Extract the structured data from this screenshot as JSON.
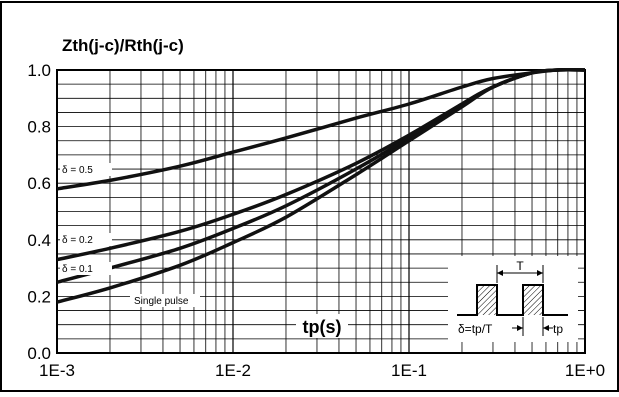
{
  "chart_data": {
    "type": "line",
    "ylabel": "Zth(j-c)/Rth(j-c)",
    "xlabel": "tp(s)",
    "x_scale": "log",
    "xlim": [
      0.001,
      1
    ],
    "ylim": [
      0,
      1
    ],
    "grid": true,
    "x_ticks": [
      {
        "value": 0.001,
        "label": "1E-3"
      },
      {
        "value": 0.01,
        "label": "1E-2"
      },
      {
        "value": 0.1,
        "label": "1E-1"
      },
      {
        "value": 1,
        "label": "1E+0"
      }
    ],
    "y_ticks": [
      {
        "value": 0.0,
        "label": "0.0"
      },
      {
        "value": 0.2,
        "label": "0.2"
      },
      {
        "value": 0.4,
        "label": "0.4"
      },
      {
        "value": 0.6,
        "label": "0.6"
      },
      {
        "value": 0.8,
        "label": "0.8"
      },
      {
        "value": 1.0,
        "label": "1.0"
      }
    ],
    "series": [
      {
        "name": "δ = 0.5",
        "x": [
          0.001,
          0.002,
          0.005,
          0.01,
          0.02,
          0.05,
          0.1,
          0.2,
          0.3,
          0.5,
          0.7,
          1
        ],
        "y": [
          0.58,
          0.61,
          0.66,
          0.71,
          0.76,
          0.83,
          0.88,
          0.94,
          0.97,
          0.99,
          1.0,
          1.0
        ]
      },
      {
        "name": "δ = 0.2",
        "x": [
          0.001,
          0.002,
          0.005,
          0.01,
          0.02,
          0.05,
          0.1,
          0.2,
          0.3,
          0.5,
          0.7,
          1
        ],
        "y": [
          0.33,
          0.37,
          0.43,
          0.49,
          0.56,
          0.67,
          0.77,
          0.88,
          0.94,
          0.99,
          1.0,
          1.0
        ]
      },
      {
        "name": "δ = 0.1",
        "x": [
          0.001,
          0.002,
          0.005,
          0.01,
          0.02,
          0.05,
          0.1,
          0.2,
          0.3,
          0.5,
          0.7,
          1
        ],
        "y": [
          0.25,
          0.3,
          0.37,
          0.44,
          0.52,
          0.65,
          0.76,
          0.88,
          0.94,
          0.99,
          1.0,
          1.0
        ]
      },
      {
        "name": "Single pulse",
        "x": [
          0.001,
          0.002,
          0.005,
          0.01,
          0.02,
          0.05,
          0.1,
          0.2,
          0.3,
          0.5,
          0.7,
          1
        ],
        "y": [
          0.18,
          0.23,
          0.31,
          0.39,
          0.48,
          0.63,
          0.75,
          0.87,
          0.94,
          0.99,
          1.0,
          1.0
        ]
      }
    ],
    "inset": {
      "period_label": "T",
      "duty_formula": "δ=tp/T",
      "pulse_label": "tp"
    }
  }
}
